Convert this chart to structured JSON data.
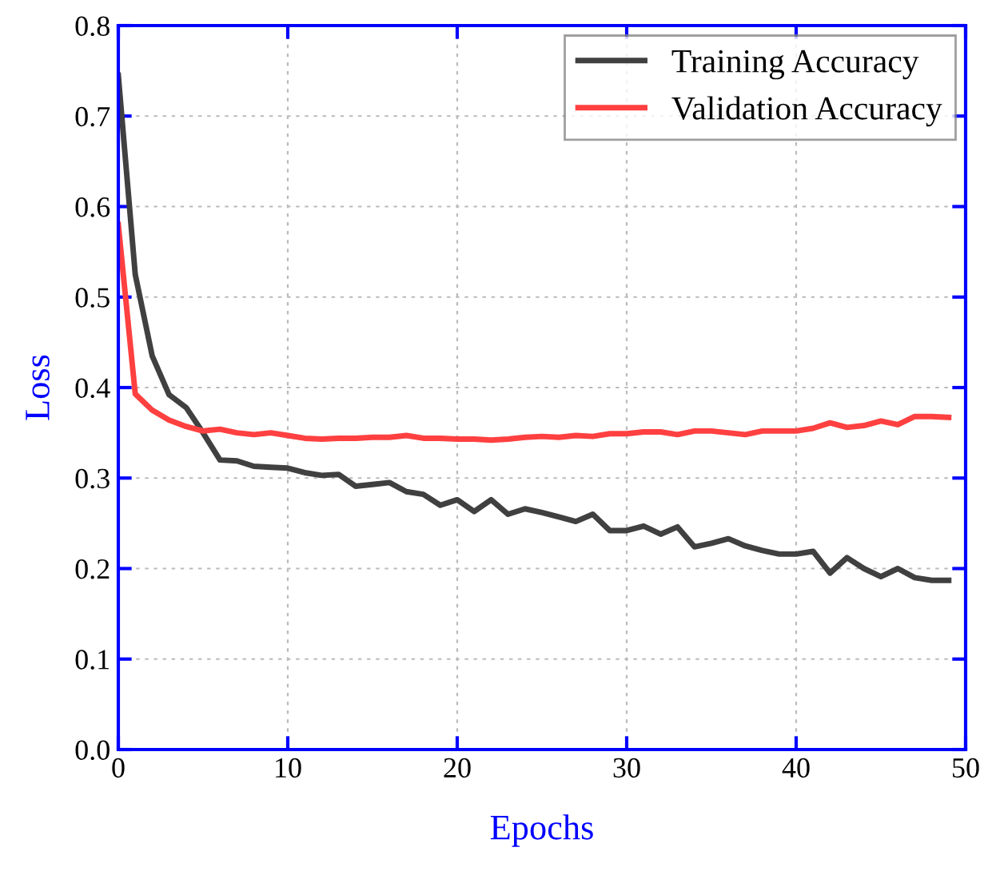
{
  "chart_data": {
    "type": "line",
    "xlabel": "Epochs",
    "ylabel": "Loss",
    "x": [
      0,
      1,
      2,
      3,
      4,
      5,
      6,
      7,
      8,
      9,
      10,
      11,
      12,
      13,
      14,
      15,
      16,
      17,
      18,
      19,
      20,
      21,
      22,
      23,
      24,
      25,
      26,
      27,
      28,
      29,
      30,
      31,
      32,
      33,
      34,
      35,
      36,
      37,
      38,
      39,
      40,
      41,
      42,
      43,
      44,
      45,
      46,
      47,
      48,
      49
    ],
    "series": [
      {
        "name": "Training Accuracy",
        "color": "#404040",
        "values": [
          0.745,
          0.525,
          0.435,
          0.392,
          0.378,
          0.35,
          0.32,
          0.319,
          0.313,
          0.312,
          0.311,
          0.306,
          0.303,
          0.304,
          0.291,
          0.293,
          0.295,
          0.285,
          0.282,
          0.27,
          0.276,
          0.263,
          0.276,
          0.26,
          0.266,
          0.262,
          0.257,
          0.252,
          0.26,
          0.242,
          0.242,
          0.247,
          0.238,
          0.246,
          0.224,
          0.228,
          0.233,
          0.225,
          0.22,
          0.216,
          0.216,
          0.219,
          0.195,
          0.212,
          0.2,
          0.191,
          0.2,
          0.19,
          0.187,
          0.187
        ]
      },
      {
        "name": "Validation Accuracy",
        "color": "#ff4040",
        "values": [
          0.58,
          0.393,
          0.375,
          0.364,
          0.357,
          0.352,
          0.354,
          0.35,
          0.348,
          0.35,
          0.347,
          0.344,
          0.343,
          0.344,
          0.344,
          0.345,
          0.345,
          0.347,
          0.344,
          0.344,
          0.343,
          0.343,
          0.342,
          0.343,
          0.345,
          0.346,
          0.345,
          0.347,
          0.346,
          0.349,
          0.349,
          0.351,
          0.351,
          0.348,
          0.352,
          0.352,
          0.35,
          0.348,
          0.352,
          0.352,
          0.352,
          0.355,
          0.361,
          0.356,
          0.358,
          0.363,
          0.359,
          0.368,
          0.368,
          0.367
        ]
      }
    ],
    "xlim": [
      0,
      50
    ],
    "xticks": [
      0,
      10,
      20,
      30,
      40,
      50
    ],
    "ylim": [
      0,
      0.8
    ],
    "yticks": [
      {
        "value": 0,
        "label": "0.0"
      },
      {
        "value": 0.1,
        "label": "0.1"
      },
      {
        "value": 0.2,
        "label": "0.2"
      },
      {
        "value": 0.3,
        "label": "0.3"
      },
      {
        "value": 0.4,
        "label": "0.4"
      },
      {
        "value": 0.5,
        "label": "0.5"
      },
      {
        "value": 0.6,
        "label": "0.6"
      },
      {
        "value": 0.7,
        "label": "0.7"
      },
      {
        "value": 0.8,
        "label": "0.8"
      }
    ],
    "grid": true,
    "legend": "top right",
    "line_style": "solid",
    "marker": "none"
  }
}
